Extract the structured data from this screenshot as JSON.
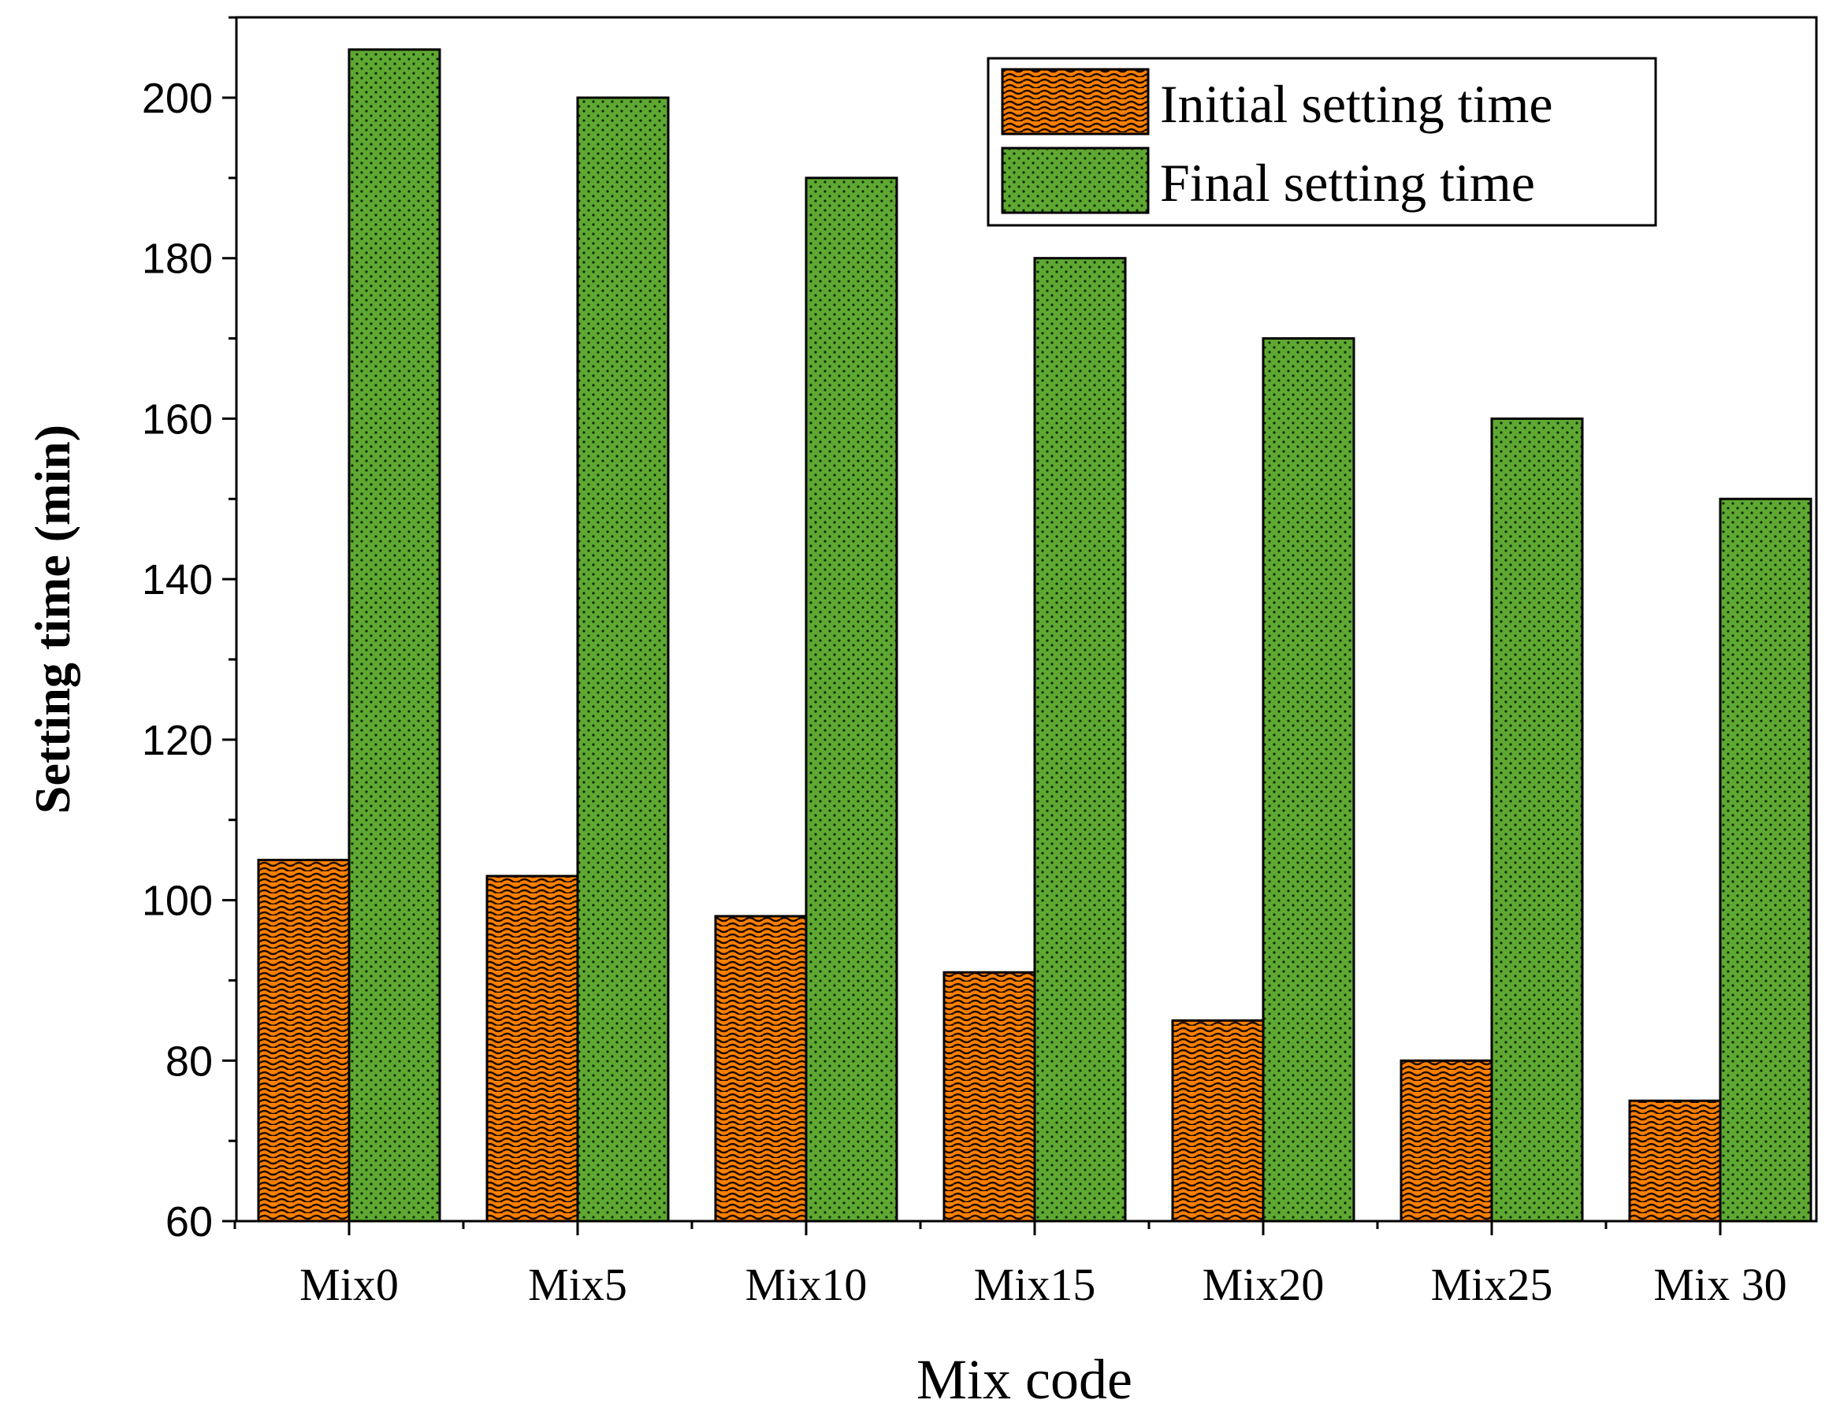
{
  "chart_data": {
    "type": "bar",
    "categories": [
      "Mix0",
      "Mix5",
      "Mix10",
      "Mix15",
      "Mix20",
      "Mix25",
      "Mix 30"
    ],
    "series": [
      {
        "name": "Initial setting time",
        "values": [
          105,
          103,
          98,
          91,
          85,
          80,
          75
        ],
        "color": "#FF8000",
        "pattern": "wave"
      },
      {
        "name": "Final setting time",
        "values": [
          206,
          200,
          190,
          180,
          170,
          160,
          150
        ],
        "color": "#5FA832",
        "pattern": "dots"
      }
    ],
    "xlabel": "Mix code",
    "ylabel": "Setting time (min)",
    "ylim": [
      60,
      210
    ],
    "yticks": [
      60,
      80,
      100,
      120,
      140,
      160,
      180,
      200
    ],
    "grid": false,
    "legend_position": "top-right"
  }
}
